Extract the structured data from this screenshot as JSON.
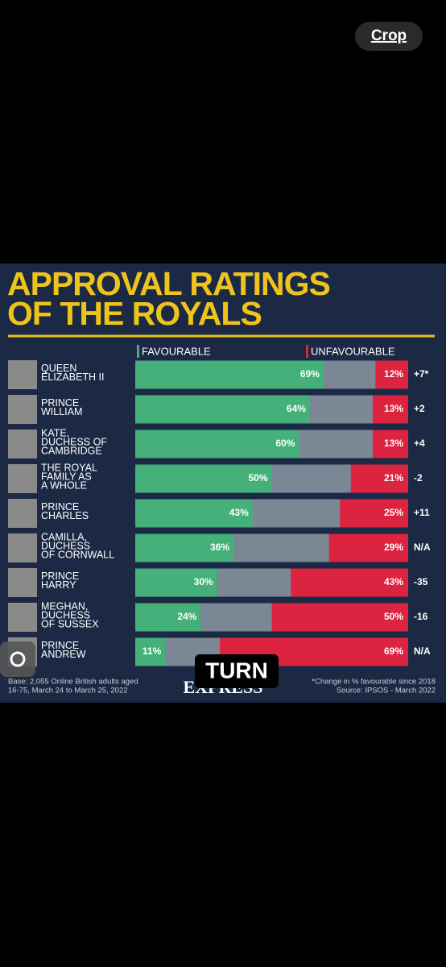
{
  "ui": {
    "crop_button": "Crop",
    "overlay_label": "TURN"
  },
  "chart_data": {
    "type": "bar",
    "orientation": "horizontal",
    "stacked": true,
    "title": [
      "APPROVAL RATINGS",
      "OF THE ROYALS"
    ],
    "categories": [
      [
        "QUEEN",
        "ELIZABETH II"
      ],
      [
        "PRINCE",
        "WILLIAM"
      ],
      [
        "KATE,",
        "DUCHESS OF",
        "CAMBRIDGE"
      ],
      [
        "THE ROYAL",
        "FAMILY AS",
        "A WHOLE"
      ],
      [
        "PRINCE",
        "CHARLES"
      ],
      [
        "CAMILLA,",
        "DUCHESS",
        "OF CORNWALL"
      ],
      [
        "PRINCE",
        "HARRY"
      ],
      [
        "MEGHAN,",
        "DUCHESS",
        "OF SUSSEX"
      ],
      [
        "PRINCE",
        "ANDREW"
      ]
    ],
    "xlim": [
      0,
      100
    ],
    "series": [
      {
        "name": "FAVOURABLE",
        "color": "#45b07a",
        "values": [
          69,
          64,
          60,
          50,
          43,
          36,
          30,
          24,
          11
        ],
        "value_labels": [
          "69%",
          "64%",
          "60%",
          "50%",
          "43%",
          "36%",
          "30%",
          "24%",
          "11%"
        ]
      },
      {
        "name": "UNFAVOURABLE",
        "color": "#dc2440",
        "values": [
          12,
          13,
          13,
          21,
          25,
          29,
          43,
          50,
          69
        ],
        "value_labels": [
          "12%",
          "13%",
          "13%",
          "21%",
          "25%",
          "29%",
          "43%",
          "50%",
          "69%"
        ]
      }
    ],
    "change_labels": [
      "+7*",
      "+2",
      "+4",
      "-2",
      "+11",
      "N/A",
      "-35",
      "-16",
      "N/A"
    ],
    "footnote_left": [
      "Base: 2,055 Online British adults aged",
      "16-75, March 24 to March 25, 2022"
    ],
    "footnote_right": [
      "*Change in % favourable since 2018",
      "Source: IPSOS - March 2022"
    ],
    "logo": "EXPRESS"
  }
}
